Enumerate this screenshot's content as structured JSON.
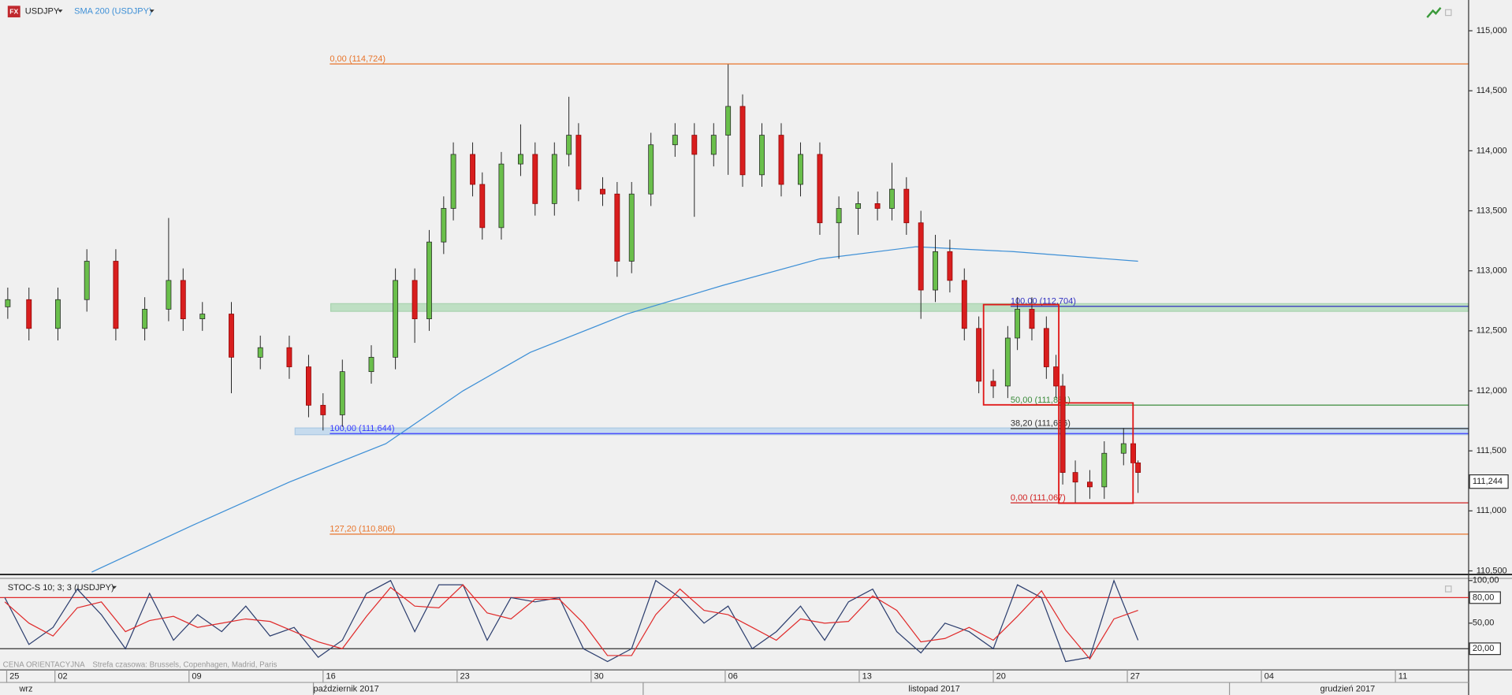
{
  "toolbar": {
    "icon": "FX",
    "indicator": "SMA 200 (USDJPY)"
  },
  "chart_data": [
    {
      "type": "candlestick",
      "title": "USDJPY",
      "x": [
        -1.76,
        -0.97,
        0.11,
        1.19,
        2.27,
        3.35,
        4.24,
        4.78,
        5.5,
        6.58,
        7.66,
        8.74,
        9.46,
        10.0,
        10.72,
        11.8,
        12.7,
        13.42,
        13.96,
        14.5,
        14.86,
        15.58,
        15.94,
        16.65,
        17.37,
        17.91,
        18.63,
        19.17,
        19.53,
        20.43,
        20.97,
        21.51,
        22.23,
        23.13,
        23.85,
        24.57,
        25.11,
        25.65,
        26.37,
        27.09,
        27.81,
        28.53,
        29.24,
        29.96,
        30.68,
        31.22,
        31.76,
        32.3,
        32.84,
        33.38,
        33.92,
        34.46,
        35.0,
        35.54,
        35.9,
        36.44,
        36.98,
        37.34,
        37.59,
        38.06,
        38.6,
        39.14,
        39.86,
        40.22,
        40.4
      ],
      "open": [
        112.7,
        112.76,
        112.52,
        112.76,
        113.08,
        112.52,
        112.68,
        112.92,
        112.6,
        112.64,
        112.28,
        112.36,
        112.2,
        111.88,
        111.8,
        112.16,
        112.28,
        112.92,
        112.6,
        113.24,
        113.52,
        113.97,
        113.72,
        113.36,
        113.89,
        113.97,
        113.56,
        113.97,
        114.13,
        113.68,
        113.64,
        113.08,
        113.64,
        114.05,
        114.13,
        113.97,
        114.13,
        114.37,
        113.8,
        114.13,
        113.72,
        113.97,
        113.4,
        113.52,
        113.56,
        113.52,
        113.68,
        113.4,
        112.84,
        113.16,
        112.92,
        112.52,
        112.08,
        112.04,
        112.44,
        112.68,
        112.52,
        112.2,
        112.04,
        111.32,
        111.24,
        111.2,
        111.48,
        111.56,
        111.4
      ],
      "high": [
        112.86,
        112.86,
        112.86,
        113.18,
        113.18,
        112.78,
        113.44,
        113.02,
        112.74,
        112.74,
        112.46,
        112.46,
        112.3,
        111.98,
        112.26,
        112.38,
        113.02,
        113.02,
        113.34,
        113.62,
        114.07,
        114.07,
        113.82,
        113.99,
        114.22,
        114.07,
        114.07,
        114.45,
        114.23,
        113.78,
        113.74,
        113.74,
        114.15,
        114.23,
        114.23,
        114.23,
        114.72,
        114.47,
        114.23,
        114.23,
        114.07,
        114.07,
        113.62,
        113.66,
        113.66,
        113.9,
        113.78,
        113.5,
        113.3,
        113.26,
        113.02,
        112.62,
        112.18,
        112.54,
        112.78,
        112.78,
        112.62,
        112.3,
        112.14,
        111.42,
        111.34,
        111.58,
        111.69,
        111.66,
        111.42
      ],
      "low": [
        112.6,
        112.42,
        112.42,
        112.66,
        112.42,
        112.42,
        112.58,
        112.5,
        112.5,
        111.98,
        112.18,
        112.1,
        111.78,
        111.67,
        111.7,
        112.06,
        112.18,
        112.4,
        112.5,
        113.14,
        113.42,
        113.62,
        113.26,
        113.26,
        113.79,
        113.46,
        113.46,
        113.87,
        113.58,
        113.54,
        112.95,
        112.98,
        113.54,
        113.95,
        113.45,
        113.87,
        113.8,
        113.7,
        113.7,
        113.62,
        113.62,
        113.3,
        113.1,
        113.3,
        113.42,
        113.42,
        113.3,
        112.6,
        112.74,
        112.82,
        112.42,
        111.98,
        111.94,
        111.94,
        112.34,
        112.42,
        112.1,
        111.94,
        111.22,
        111.07,
        111.1,
        111.1,
        111.38,
        111.3,
        111.15
      ],
      "close": [
        112.76,
        112.52,
        112.76,
        113.08,
        112.52,
        112.68,
        112.92,
        112.6,
        112.64,
        112.28,
        112.36,
        112.2,
        111.88,
        111.8,
        112.16,
        112.28,
        112.92,
        112.6,
        113.24,
        113.52,
        113.97,
        113.72,
        113.36,
        113.89,
        113.97,
        113.56,
        113.97,
        114.13,
        113.68,
        113.64,
        113.08,
        113.64,
        114.05,
        114.13,
        113.97,
        114.13,
        114.37,
        113.8,
        114.13,
        113.72,
        113.97,
        113.4,
        113.52,
        113.56,
        113.52,
        113.68,
        113.4,
        112.84,
        113.16,
        112.92,
        112.52,
        112.08,
        112.04,
        112.44,
        112.68,
        112.52,
        112.2,
        112.04,
        111.32,
        111.24,
        111.2,
        111.48,
        111.56,
        111.4,
        111.32
      ],
      "up_color": "#6abf4b",
      "down_color": "#d81e1e",
      "overlay": {
        "name": "SMA 200 (USDJPY)",
        "color": "#3d8fd6",
        "x": [
          1.37,
          5.14,
          8.74,
          12.34,
          15.22,
          17.73,
          21.33,
          24.93,
          28.53,
          32.12,
          35.72,
          40.4
        ],
        "values": [
          110.49,
          110.88,
          111.24,
          111.56,
          112.0,
          112.32,
          112.64,
          112.88,
          113.1,
          113.2,
          113.16,
          113.08
        ]
      },
      "levels": [
        {
          "label": "0,00 (114,724)",
          "value": 114.724,
          "color": "#e8742a"
        },
        {
          "label": "100,00 (111,644)",
          "value": 111.644,
          "color": "#3a3aff"
        },
        {
          "label": "127,20 (110,806)",
          "value": 110.806,
          "color": "#e8742a"
        },
        {
          "label": "100,00 (112,704)",
          "value": 112.704,
          "color": "#3030c0"
        },
        {
          "label": "50,00 (111,881)",
          "value": 111.881,
          "color": "#3a8a3a"
        },
        {
          "label": "38,20 (111,686)",
          "value": 111.686,
          "color": "#333333"
        },
        {
          "label": "0,00 (111,067)",
          "value": 111.067,
          "color": "#d02020"
        }
      ],
      "last_price": {
        "value": 111.244,
        "label": "111,244"
      },
      "xlim": [
        -2.05,
        52.73
      ],
      "ylim": [
        110.47,
        115.24
      ],
      "yticks": [
        {
          "value": 110.5,
          "label": "110,500"
        },
        {
          "value": 111,
          "label": "111,000"
        },
        {
          "value": 111.5,
          "label": "111,500"
        },
        {
          "value": 112,
          "label": "112,000"
        },
        {
          "value": 112.5,
          "label": "112,500"
        },
        {
          "value": 113,
          "label": "113,000"
        },
        {
          "value": 113.5,
          "label": "113,500"
        },
        {
          "value": 114,
          "label": "114,000"
        },
        {
          "value": 114.5,
          "label": "114,500"
        },
        {
          "value": 115,
          "label": "115,000"
        }
      ],
      "xticks": [
        {
          "value": -1.8,
          "label": "25"
        },
        {
          "value": 0,
          "label": "02"
        },
        {
          "value": 5,
          "label": "09"
        },
        {
          "value": 10,
          "label": "16"
        },
        {
          "value": 15,
          "label": "23"
        },
        {
          "value": 20,
          "label": "30"
        },
        {
          "value": 25,
          "label": "06"
        },
        {
          "value": 30,
          "label": "13"
        },
        {
          "value": 35,
          "label": "20"
        },
        {
          "value": 40,
          "label": "27"
        },
        {
          "value": 45,
          "label": "04"
        },
        {
          "value": 50,
          "label": "11"
        }
      ]
    },
    {
      "type": "line",
      "title": "STOC-S 10; 3; 3 (USDJPY)",
      "x": [
        -1.87,
        -0.97,
        -0.07,
        0.83,
        1.73,
        2.63,
        3.53,
        4.42,
        5.32,
        6.22,
        7.12,
        8.02,
        8.92,
        9.82,
        10.72,
        11.62,
        12.52,
        13.42,
        14.32,
        15.22,
        16.12,
        17.01,
        17.91,
        18.81,
        19.71,
        20.61,
        21.51,
        22.41,
        23.31,
        24.21,
        25.11,
        26.01,
        26.91,
        27.81,
        28.71,
        29.6,
        30.5,
        31.4,
        32.3,
        33.2,
        34.1,
        35.0,
        35.9,
        36.8,
        37.7,
        38.6,
        39.5,
        40.4
      ],
      "series": [
        {
          "color": "#2c3e6e",
          "values": [
            80,
            25,
            45,
            90,
            60,
            20,
            85,
            30,
            60,
            40,
            70,
            35,
            45,
            10,
            30,
            85,
            100,
            40,
            95,
            95,
            30,
            80,
            75,
            80,
            20,
            5,
            20,
            100,
            80,
            50,
            70,
            20,
            40,
            70,
            30,
            75,
            90,
            40,
            15,
            50,
            40,
            20,
            95,
            80,
            5,
            10,
            100,
            30
          ]
        },
        {
          "color": "#e02a2a",
          "values": [
            75,
            50,
            35,
            68,
            75,
            40,
            53,
            58,
            45,
            50,
            55,
            52,
            40,
            28,
            20,
            58,
            92,
            70,
            68,
            95,
            62,
            55,
            78,
            78,
            50,
            12,
            12,
            60,
            90,
            65,
            60,
            45,
            30,
            55,
            50,
            52,
            82,
            65,
            28,
            32,
            45,
            30,
            58,
            88,
            42,
            8,
            55,
            65
          ]
        }
      ],
      "levels": [
        {
          "value": 80,
          "color": "#e02a2a"
        },
        {
          "value": 20,
          "color": "#333333"
        }
      ],
      "xlim": [
        -2.05,
        52.73
      ],
      "ylim": [
        0,
        100
      ],
      "yticks": [
        {
          "value": 100,
          "label": "100,00"
        },
        {
          "value": 80,
          "label": "80,00"
        },
        {
          "value": 50,
          "label": "50,00"
        },
        {
          "value": 20,
          "label": "20,00"
        }
      ]
    }
  ],
  "footer": {
    "source": "CENA ORIENTACYJNA",
    "timezone": "Strefa czasowa: Brussels, Copenhagen, Madrid, Paris",
    "months": [
      "wrz",
      "październik 2017",
      "listopad 2017",
      "grudzień 2017"
    ]
  }
}
